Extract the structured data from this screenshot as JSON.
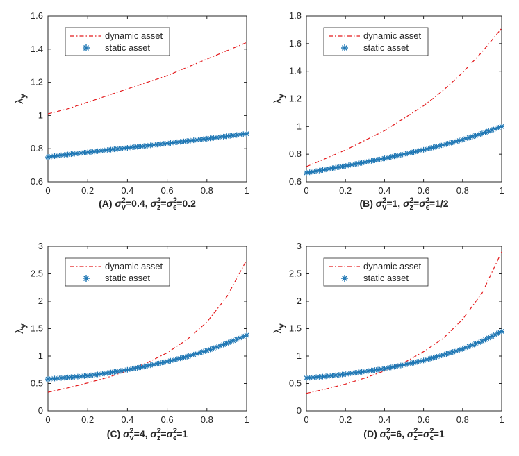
{
  "colors": {
    "dynamic": "#e41a1c",
    "static": "#1f77b4",
    "axis": "#262626"
  },
  "chart_data": [
    {
      "type": "line",
      "panel": "A",
      "xlabel": "",
      "ylabel": "λy",
      "ylabel_main": "λ",
      "ylabel_sub": "y",
      "xlim": [
        0,
        1
      ],
      "ylim": [
        0.6,
        1.6
      ],
      "xticks": [
        0,
        0.2,
        0.4,
        0.6,
        0.8,
        1
      ],
      "xtick_labels": [
        "0",
        "0.2",
        "0.4",
        "0.6",
        "0.8",
        "1"
      ],
      "yticks": [
        0.6,
        0.8,
        1.0,
        1.2,
        1.4,
        1.6
      ],
      "ytick_labels": [
        "0.6",
        "0.8",
        "1",
        "1.2",
        "1.4",
        "1.6"
      ],
      "caption": {
        "prefix": "(A) ",
        "sv": "σ",
        "sv_sup": "2",
        "sv_sub": "v",
        "sv_val": "=0.4, ",
        "sz": "σ",
        "sz_sup": "2",
        "sz_sub": "z",
        "eq": "=",
        "se": "σ",
        "se_sup": "2",
        "se_sub": "ϵ",
        "se_val": "=0.2"
      },
      "legend": [
        "dynamic asset",
        "static asset"
      ],
      "legend_position": "top-left",
      "series": [
        {
          "name": "dynamic asset",
          "style": "dash-dot",
          "x": [
            0,
            0.1,
            0.2,
            0.3,
            0.4,
            0.5,
            0.6,
            0.7,
            0.8,
            0.9,
            1.0
          ],
          "y": [
            1.01,
            1.04,
            1.08,
            1.12,
            1.16,
            1.2,
            1.24,
            1.29,
            1.34,
            1.39,
            1.44
          ]
        },
        {
          "name": "static asset",
          "style": "asterisk",
          "x": [
            0,
            0.1,
            0.2,
            0.3,
            0.4,
            0.5,
            0.6,
            0.7,
            0.8,
            0.9,
            1.0
          ],
          "y": [
            0.75,
            0.765,
            0.778,
            0.792,
            0.805,
            0.818,
            0.832,
            0.846,
            0.86,
            0.875,
            0.89
          ]
        }
      ]
    },
    {
      "type": "line",
      "panel": "B",
      "xlabel": "",
      "ylabel": "λy",
      "ylabel_main": "λ",
      "ylabel_sub": "y",
      "xlim": [
        0,
        1
      ],
      "ylim": [
        0.6,
        1.8
      ],
      "xticks": [
        0,
        0.2,
        0.4,
        0.6,
        0.8,
        1
      ],
      "xtick_labels": [
        "0",
        "0.2",
        "0.4",
        "0.6",
        "0.8",
        "1"
      ],
      "yticks": [
        0.6,
        0.8,
        1.0,
        1.2,
        1.4,
        1.6,
        1.8
      ],
      "ytick_labels": [
        "0.6",
        "0.8",
        "1",
        "1.2",
        "1.4",
        "1.6",
        "1.8"
      ],
      "caption": {
        "prefix": "(B) ",
        "sv": "σ",
        "sv_sup": "2",
        "sv_sub": "v",
        "sv_val": "=1, ",
        "sz": "σ",
        "sz_sup": "2",
        "sz_sub": "z",
        "eq": "=",
        "se": "σ",
        "se_sup": "2",
        "se_sub": "ϵ",
        "se_val": "=1/2"
      },
      "legend": [
        "dynamic asset",
        "static asset"
      ],
      "legend_position": "top-left",
      "series": [
        {
          "name": "dynamic asset",
          "style": "dash-dot",
          "x": [
            0,
            0.1,
            0.2,
            0.3,
            0.4,
            0.5,
            0.6,
            0.7,
            0.8,
            0.9,
            1.0
          ],
          "y": [
            0.71,
            0.77,
            0.83,
            0.9,
            0.97,
            1.06,
            1.15,
            1.26,
            1.39,
            1.54,
            1.71
          ]
        },
        {
          "name": "static asset",
          "style": "asterisk",
          "x": [
            0,
            0.1,
            0.2,
            0.3,
            0.4,
            0.5,
            0.6,
            0.7,
            0.8,
            0.9,
            1.0
          ],
          "y": [
            0.665,
            0.69,
            0.715,
            0.742,
            0.77,
            0.8,
            0.832,
            0.867,
            0.905,
            0.95,
            1.0
          ]
        }
      ]
    },
    {
      "type": "line",
      "panel": "C",
      "xlabel": "",
      "ylabel": "λy",
      "ylabel_main": "λ",
      "ylabel_sub": "y",
      "xlim": [
        0,
        1
      ],
      "ylim": [
        0,
        3
      ],
      "xticks": [
        0,
        0.2,
        0.4,
        0.6,
        0.8,
        1
      ],
      "xtick_labels": [
        "0",
        "0.2",
        "0.4",
        "0.6",
        "0.8",
        "1"
      ],
      "yticks": [
        0,
        0.5,
        1.0,
        1.5,
        2.0,
        2.5,
        3.0
      ],
      "ytick_labels": [
        "0",
        "0.5",
        "1",
        "1.5",
        "2",
        "2.5",
        "3"
      ],
      "caption": {
        "prefix": "(C) ",
        "sv": "σ",
        "sv_sup": "2",
        "sv_sub": "v",
        "sv_val": "=4, ",
        "sz": "σ",
        "sz_sup": "2",
        "sz_sub": "z",
        "eq": "=",
        "se": "σ",
        "se_sup": "2",
        "se_sub": "ϵ",
        "se_val": "=1"
      },
      "legend": [
        "dynamic asset",
        "static asset"
      ],
      "legend_position": "top-left",
      "series": [
        {
          "name": "dynamic asset",
          "style": "dash-dot",
          "x": [
            0,
            0.1,
            0.2,
            0.3,
            0.4,
            0.5,
            0.6,
            0.7,
            0.8,
            0.9,
            1.0
          ],
          "y": [
            0.34,
            0.42,
            0.51,
            0.61,
            0.73,
            0.88,
            1.06,
            1.3,
            1.62,
            2.08,
            2.75
          ]
        },
        {
          "name": "static asset",
          "style": "asterisk",
          "x": [
            0,
            0.1,
            0.2,
            0.3,
            0.4,
            0.5,
            0.6,
            0.7,
            0.8,
            0.9,
            1.0
          ],
          "y": [
            0.58,
            0.61,
            0.64,
            0.69,
            0.75,
            0.82,
            0.9,
            0.99,
            1.1,
            1.23,
            1.38
          ]
        }
      ]
    },
    {
      "type": "line",
      "panel": "D",
      "xlabel": "",
      "ylabel": "λy",
      "ylabel_main": "λ",
      "ylabel_sub": "y",
      "xlim": [
        0,
        1
      ],
      "ylim": [
        0,
        3
      ],
      "xticks": [
        0,
        0.2,
        0.4,
        0.6,
        0.8,
        1
      ],
      "xtick_labels": [
        "0",
        "0.2",
        "0.4",
        "0.6",
        "0.8",
        "1"
      ],
      "yticks": [
        0,
        0.5,
        1.0,
        1.5,
        2.0,
        2.5,
        3.0
      ],
      "ytick_labels": [
        "0",
        "0.5",
        "1",
        "1.5",
        "2",
        "2.5",
        "3"
      ],
      "caption": {
        "prefix": "(D) ",
        "sv": "σ",
        "sv_sup": "2",
        "sv_sub": "v",
        "sv_val": "=6, ",
        "sz": "σ",
        "sz_sup": "2",
        "sz_sub": "z",
        "eq": "=",
        "se": "σ",
        "se_sup": "2",
        "se_sub": "ϵ",
        "se_val": "=1"
      },
      "legend": [
        "dynamic asset",
        "static asset"
      ],
      "legend_position": "top-left",
      "series": [
        {
          "name": "dynamic asset",
          "style": "dash-dot",
          "x": [
            0,
            0.1,
            0.2,
            0.3,
            0.4,
            0.5,
            0.6,
            0.7,
            0.8,
            0.9,
            1.0
          ],
          "y": [
            0.32,
            0.4,
            0.49,
            0.6,
            0.73,
            0.88,
            1.08,
            1.32,
            1.67,
            2.15,
            2.9
          ]
        },
        {
          "name": "static asset",
          "style": "asterisk",
          "x": [
            0,
            0.1,
            0.2,
            0.3,
            0.4,
            0.5,
            0.6,
            0.7,
            0.8,
            0.9,
            1.0
          ],
          "y": [
            0.6,
            0.63,
            0.67,
            0.72,
            0.77,
            0.84,
            0.92,
            1.02,
            1.13,
            1.27,
            1.45
          ]
        }
      ]
    }
  ]
}
